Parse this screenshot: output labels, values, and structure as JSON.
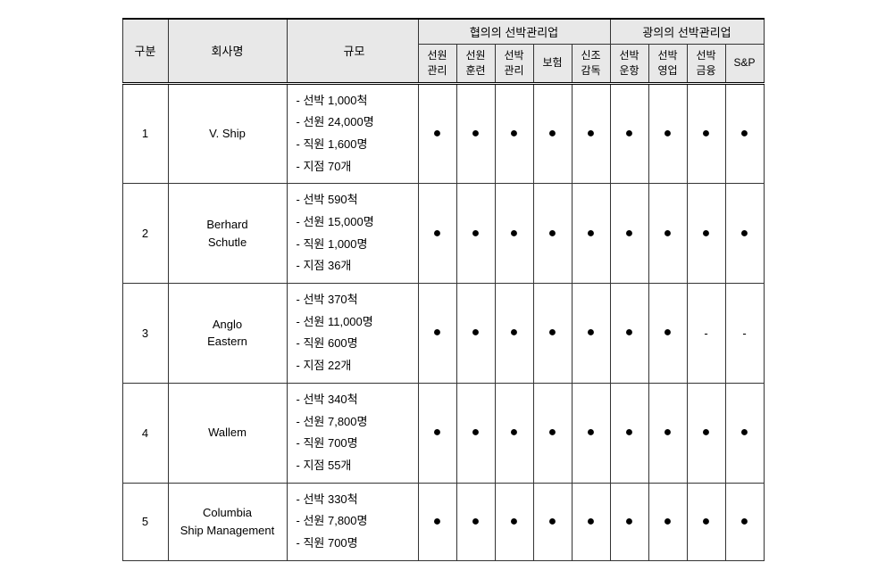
{
  "table": {
    "headers": {
      "gubun": "구분",
      "company": "회사명",
      "scale": "규모",
      "narrow_group": "협의의 선박관리업",
      "broad_group": "광의의 선박관리업",
      "narrow": [
        "선원\n관리",
        "선원\n훈련",
        "선박\n관리",
        "보험",
        "신조\n감독"
      ],
      "broad": [
        "선박\n운항",
        "선박\n영업",
        "선박\n금융",
        "S&P"
      ]
    },
    "rows": [
      {
        "num": "1",
        "company": "V. Ship",
        "scale": [
          "- 선박 1,000척",
          "- 선원 24,000명",
          "- 직원 1,600명",
          "- 지점 70개"
        ],
        "services": [
          "●",
          "●",
          "●",
          "●",
          "●",
          "●",
          "●",
          "●",
          "●"
        ]
      },
      {
        "num": "2",
        "company": "Berhard\nSchutle",
        "scale": [
          "- 선박 590척",
          "- 선원 15,000명",
          "- 직원 1,000명",
          "- 지점 36개"
        ],
        "services": [
          "●",
          "●",
          "●",
          "●",
          "●",
          "●",
          "●",
          "●",
          "●"
        ]
      },
      {
        "num": "3",
        "company": "Anglo\nEastern",
        "scale": [
          "- 선박 370척",
          "- 선원 11,000명",
          "- 직원 600명",
          "- 지점 22개"
        ],
        "services": [
          "●",
          "●",
          "●",
          "●",
          "●",
          "●",
          "●",
          "-",
          "-"
        ]
      },
      {
        "num": "4",
        "company": "Wallem",
        "scale": [
          "- 선박 340척",
          "- 선원 7,800명",
          "- 직원 700명",
          "- 지점 55개"
        ],
        "services": [
          "●",
          "●",
          "●",
          "●",
          "●",
          "●",
          "●",
          "●",
          "●"
        ]
      },
      {
        "num": "5",
        "company": "Columbia\nShip Management",
        "scale": [
          "- 선박 330척",
          "- 선원 7,800명",
          "- 직원 700명"
        ],
        "services": [
          "●",
          "●",
          "●",
          "●",
          "●",
          "●",
          "●",
          "●",
          "●"
        ]
      }
    ],
    "colors": {
      "header_bg": "#e8e8e8",
      "border": "#333333",
      "text": "#000000",
      "dot": "#000000"
    }
  }
}
